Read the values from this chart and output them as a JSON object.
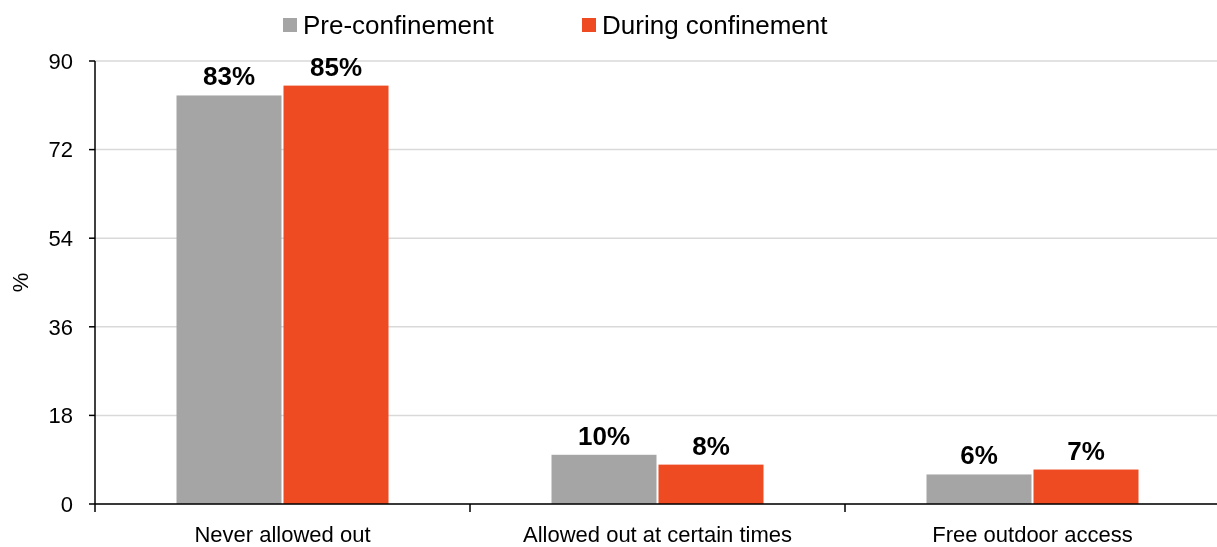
{
  "chart_data": {
    "type": "bar",
    "ylabel": "%",
    "categories": [
      "Never allowed out",
      "Allowed out at certain times",
      "Free outdoor access"
    ],
    "series": [
      {
        "name": "Pre-confinement",
        "color": "#a5a5a5",
        "values": [
          83,
          10,
          6
        ],
        "value_labels": [
          "83%",
          "10%",
          "6%"
        ]
      },
      {
        "name": "During confinement",
        "color": "#ee4b22",
        "values": [
          85,
          8,
          7
        ],
        "value_labels": [
          "85%",
          "8%",
          "7%"
        ]
      }
    ],
    "ylim": [
      0,
      90
    ],
    "yticks": [
      0,
      18,
      36,
      54,
      72,
      90
    ],
    "grid": "y",
    "legend": "top"
  }
}
